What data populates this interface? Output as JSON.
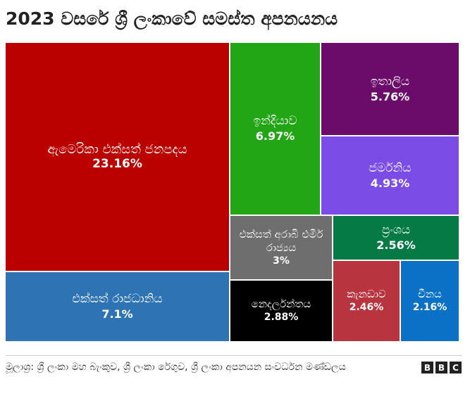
{
  "header": {
    "title": "2023 වසරේ ශ්‍රී ලංකාවේ සමස්ත අපනයනය"
  },
  "chart_data": {
    "type": "treemap",
    "title": "2023 වසරේ ශ්‍රී ලංකාවේ සමස්ත අපනයනය",
    "unit": "%",
    "items": [
      {
        "label": "ඇමෙරිකා එක්සත් ජනපදය",
        "value": 23.16,
        "display": "23.16%",
        "color": "#bb0000"
      },
      {
        "label": "එක්සත් රාජධානිය",
        "value": 7.1,
        "display": "7.1%",
        "color": "#2e74b5"
      },
      {
        "label": "ඉන්දියාව",
        "value": 6.97,
        "display": "6.97%",
        "color": "#22a615"
      },
      {
        "label": "ඉතාලිය",
        "value": 5.76,
        "display": "5.76%",
        "color": "#6b0c6b"
      },
      {
        "label": "ජර්මනිය",
        "value": 4.93,
        "display": "4.93%",
        "color": "#7b4de6"
      },
      {
        "label": "එක්සත් අරාබි එමීර් රාජ්‍යය",
        "value": 3,
        "display": "3%",
        "color": "#6e6e6e"
      },
      {
        "label": "නෙදර්ලන්තය",
        "value": 2.88,
        "display": "2.88%",
        "color": "#000000"
      },
      {
        "label": "ප්‍රංශය",
        "value": 2.56,
        "display": "2.56%",
        "color": "#067a45"
      },
      {
        "label": "කැනඩාව",
        "value": 2.46,
        "display": "2.46%",
        "color": "#b8343f"
      },
      {
        "label": "චීනය",
        "value": 2.16,
        "display": "2.16%",
        "color": "#0a71c7"
      }
    ]
  },
  "footer": {
    "source": "මූලාශ්‍ර: ශ්‍රී ලංකා මහ බැංකුව, ශ්‍රී ලංකා රේගුව, ශ්‍රී ලංකා අපනයන සංවර්ධන මණ්ඩලය",
    "logo_letters": [
      "B",
      "B",
      "C"
    ]
  }
}
